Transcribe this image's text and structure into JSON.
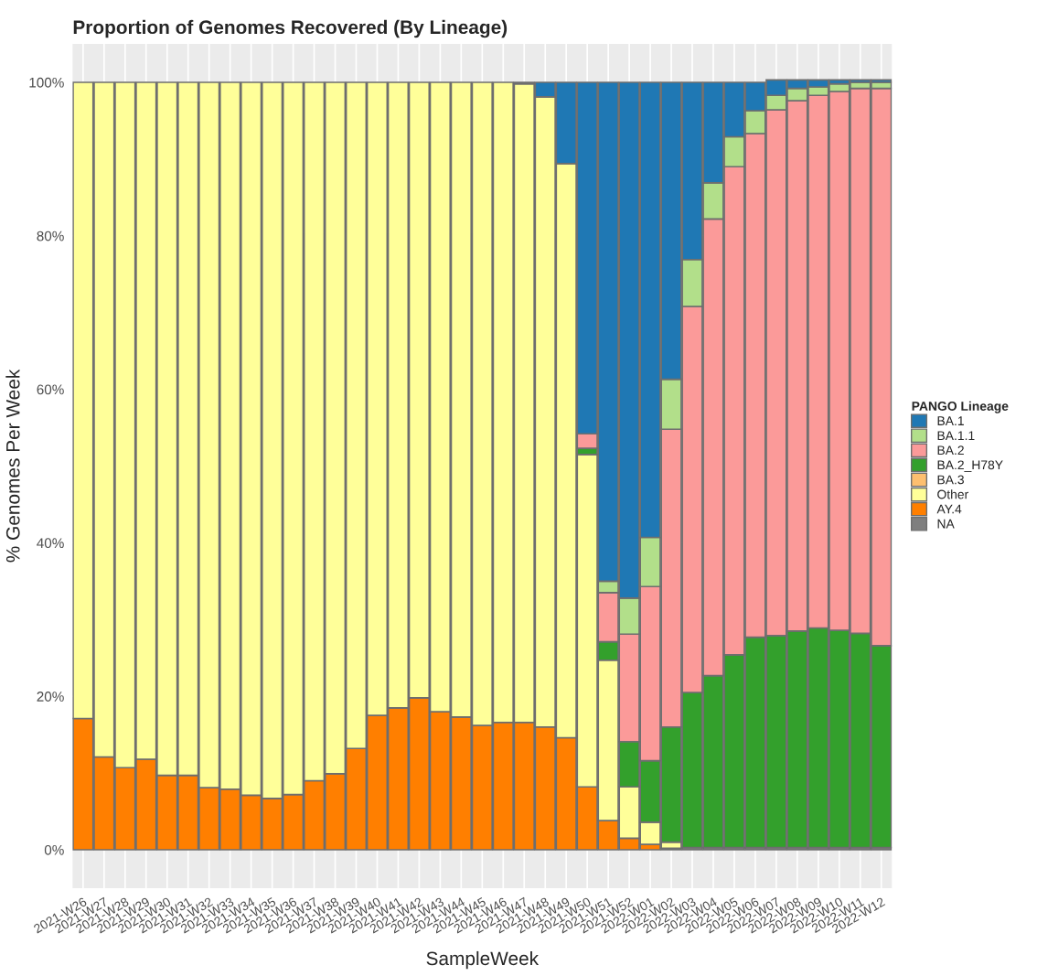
{
  "chart_data": {
    "type": "bar",
    "stacked": true,
    "title": "Proportion of Genomes Recovered (By Lineage)",
    "xlabel": "SampleWeek",
    "ylabel": "% Genomes Per Week",
    "legend_title": "PANGO Lineage",
    "legend": "right",
    "grid": true,
    "categories": [
      "2021-W26",
      "2021-W27",
      "2021-W28",
      "2021-W29",
      "2021-W30",
      "2021-W31",
      "2021-W32",
      "2021-W33",
      "2021-W34",
      "2021-W35",
      "2021-W36",
      "2021-W37",
      "2021-W38",
      "2021-W39",
      "2021-W40",
      "2021-W41",
      "2021-W42",
      "2021-W43",
      "2021-W44",
      "2021-W45",
      "2021-W46",
      "2021-W47",
      "2021-W48",
      "2021-W49",
      "2021-W50",
      "2021-W51",
      "2021-W52",
      "2022-W01",
      "2022-W02",
      "2022-W03",
      "2022-W04",
      "2022-W05",
      "2022-W06",
      "2022-W07",
      "2022-W08",
      "2022-W09",
      "2022-W10",
      "2022-W11",
      "2022-W12"
    ],
    "ylim": [
      -5,
      105
    ],
    "yticks": [
      {
        "value": 0,
        "label": "0%"
      },
      {
        "value": 20,
        "label": "20%"
      },
      {
        "value": 40,
        "label": "40%"
      },
      {
        "value": 60,
        "label": "60%"
      },
      {
        "value": 80,
        "label": "80%"
      },
      {
        "value": 100,
        "label": "100%"
      }
    ],
    "series": [
      {
        "name": "NA",
        "color": "#7f7f7f",
        "values": [
          0,
          0,
          0,
          0,
          0,
          0,
          0,
          0,
          0,
          0,
          0,
          0,
          0,
          0,
          0,
          0,
          0,
          0,
          0,
          0,
          0,
          0,
          0,
          0,
          0,
          0,
          0,
          0,
          0,
          0.3,
          0.3,
          0.3,
          0.3,
          0.3,
          0.3,
          0.3,
          0.3,
          0.3,
          0.3
        ]
      },
      {
        "name": "AY.4",
        "color": "#ff7f00",
        "values": [
          17.1,
          12.1,
          10.7,
          11.8,
          9.7,
          9.7,
          8.1,
          7.9,
          7.1,
          6.7,
          7.2,
          9.0,
          9.9,
          13.2,
          17.5,
          18.5,
          19.8,
          18.0,
          17.3,
          16.2,
          16.6,
          16.6,
          16.0,
          14.6,
          8.2,
          3.8,
          1.5,
          0.7,
          0.2,
          0,
          0,
          0,
          0,
          0,
          0,
          0,
          0,
          0,
          0
        ]
      },
      {
        "name": "Other",
        "color": "#ffff99",
        "values": [
          82.9,
          87.9,
          89.3,
          88.2,
          90.3,
          90.3,
          91.9,
          92.1,
          92.9,
          93.3,
          92.8,
          91.0,
          90.1,
          86.8,
          82.5,
          81.5,
          80.2,
          82.0,
          82.7,
          83.8,
          83.4,
          83.2,
          82.1,
          74.8,
          43.3,
          20.9,
          6.7,
          2.9,
          0.8,
          0,
          0,
          0,
          0,
          0,
          0,
          0,
          0,
          0,
          0
        ]
      },
      {
        "name": "BA.3",
        "color": "#fdbf6f",
        "values": [
          0,
          0,
          0,
          0,
          0,
          0,
          0,
          0,
          0,
          0,
          0,
          0,
          0,
          0,
          0,
          0,
          0,
          0,
          0,
          0,
          0,
          0,
          0,
          0,
          0,
          0,
          0,
          0,
          0,
          0,
          0,
          0,
          0,
          0,
          0,
          0,
          0,
          0,
          0
        ]
      },
      {
        "name": "BA.2_H78Y",
        "color": "#33a02c",
        "values": [
          0,
          0,
          0,
          0,
          0,
          0,
          0,
          0,
          0,
          0,
          0,
          0,
          0,
          0,
          0,
          0,
          0,
          0,
          0,
          0,
          0,
          0,
          0,
          0,
          0.8,
          2.4,
          5.9,
          8.0,
          15.0,
          20.2,
          22.4,
          25.1,
          27.4,
          27.6,
          28.2,
          28.6,
          28.3,
          27.9,
          26.3
        ]
      },
      {
        "name": "BA.2",
        "color": "#fb9a99",
        "values": [
          0,
          0,
          0,
          0,
          0,
          0,
          0,
          0,
          0,
          0,
          0,
          0,
          0,
          0,
          0,
          0,
          0,
          0,
          0,
          0,
          0,
          0,
          0,
          0,
          1.9,
          6.4,
          14.0,
          22.7,
          38.8,
          50.3,
          59.5,
          63.6,
          65.6,
          68.5,
          69.1,
          69.4,
          70.2,
          71.0,
          72.6
        ]
      },
      {
        "name": "BA.1.1",
        "color": "#b2df8a",
        "values": [
          0,
          0,
          0,
          0,
          0,
          0,
          0,
          0,
          0,
          0,
          0,
          0,
          0,
          0,
          0,
          0,
          0,
          0,
          0,
          0,
          0,
          0,
          0,
          0,
          0,
          1.5,
          4.7,
          6.4,
          6.5,
          6.1,
          4.7,
          3.9,
          3.0,
          1.9,
          1.6,
          1.1,
          1.0,
          0.8,
          0.8
        ]
      },
      {
        "name": "BA.1",
        "color": "#1f78b4",
        "values": [
          0,
          0,
          0,
          0,
          0,
          0,
          0,
          0,
          0,
          0,
          0,
          0,
          0,
          0,
          0,
          0,
          0,
          0,
          0,
          0,
          0,
          0.2,
          1.9,
          10.6,
          45.8,
          65.0,
          67.2,
          59.3,
          38.7,
          23.1,
          13.1,
          7.1,
          3.7,
          2.0,
          1.1,
          0.9,
          0.5,
          0.3,
          0.3
        ]
      }
    ]
  }
}
